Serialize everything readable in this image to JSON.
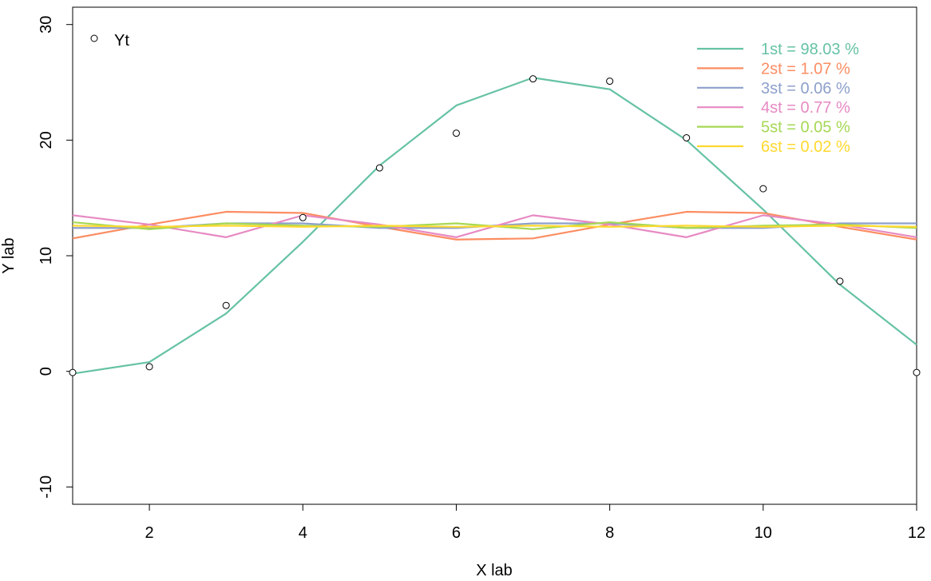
{
  "chart_data": {
    "type": "line",
    "xlabel": "X lab",
    "ylabel": "Y lab",
    "xlim": [
      1,
      12
    ],
    "ylim": [
      -11.5,
      31.5
    ],
    "x_ticks": [
      2,
      4,
      6,
      8,
      10,
      12
    ],
    "y_ticks": [
      -10,
      0,
      10,
      20,
      30
    ],
    "grid": false,
    "x": [
      1,
      2,
      3,
      4,
      5,
      6,
      7,
      8,
      9,
      10,
      11,
      12
    ],
    "points": {
      "name": "Yt",
      "legend_position": "top-left",
      "values": [
        -0.1,
        0.4,
        5.7,
        13.3,
        17.6,
        20.6,
        25.3,
        25.1,
        20.2,
        15.8,
        7.8,
        -0.1
      ]
    },
    "legend_position": "top-right",
    "series": [
      {
        "name": "1st = 98.03 %",
        "color": "#66c2a5",
        "values": [
          -0.2,
          0.8,
          5.0,
          11.2,
          17.8,
          23.0,
          25.4,
          24.4,
          20.0,
          14.0,
          7.5,
          2.3
        ]
      },
      {
        "name": "2st = 1.07 %",
        "color": "#fc8d62",
        "values": [
          11.5,
          12.7,
          13.8,
          13.7,
          12.5,
          11.4,
          11.5,
          12.7,
          13.8,
          13.7,
          12.5,
          11.4
        ]
      },
      {
        "name": "3st = 0.06 %",
        "color": "#8da0cb",
        "values": [
          12.4,
          12.4,
          12.8,
          12.8,
          12.4,
          12.4,
          12.8,
          12.8,
          12.4,
          12.4,
          12.8,
          12.8
        ]
      },
      {
        "name": "4st = 0.77 %",
        "color": "#e78ac3",
        "values": [
          13.5,
          12.7,
          11.6,
          13.5,
          12.7,
          11.6,
          13.5,
          12.7,
          11.6,
          13.5,
          12.7,
          11.6
        ]
      },
      {
        "name": "5st = 0.05 %",
        "color": "#a6d854",
        "values": [
          12.9,
          12.3,
          12.8,
          12.6,
          12.5,
          12.8,
          12.3,
          12.9,
          12.4,
          12.6,
          12.7,
          12.4
        ]
      },
      {
        "name": "6st = 0.02 %",
        "color": "#ffd92f",
        "values": [
          12.6,
          12.5,
          12.6,
          12.5,
          12.6,
          12.5,
          12.6,
          12.5,
          12.6,
          12.5,
          12.6,
          12.5
        ]
      }
    ]
  }
}
